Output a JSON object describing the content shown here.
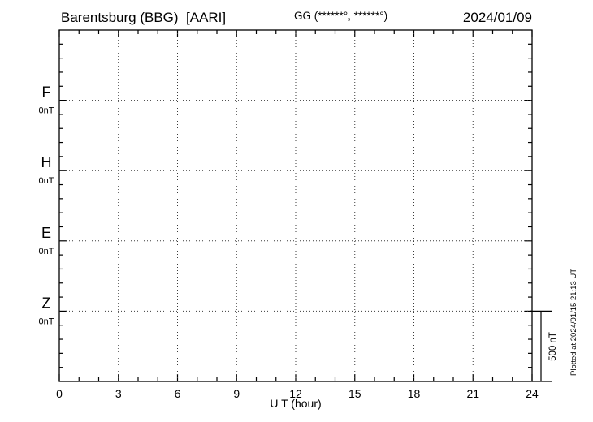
{
  "header": {
    "station_title": "Barentsburg (BBG)  [AARI]",
    "gg_coords": "GG (******°, ******°)",
    "date": "2024/01/09"
  },
  "chart_data": {
    "type": "line",
    "title": "Barentsburg (BBG) [AARI] magnetogram for 2024/01/09",
    "xlabel": "U T (hour)",
    "ylabel": "",
    "xlim": [
      0,
      24
    ],
    "x_ticks": [
      0,
      3,
      6,
      9,
      12,
      15,
      18,
      21,
      24
    ],
    "x_minor_step_hours": 1,
    "grid": "dotted vertical lines every 3 hours; dotted horizontal line at each channel baseline",
    "y_minor_divisions": 25,
    "nT_per_minor_division": 100,
    "channels": [
      {
        "name": "F",
        "baseline_label": "0nT",
        "baseline_value_nT": 0,
        "color": "#FFAE00",
        "values": []
      },
      {
        "name": "H",
        "baseline_label": "0nT",
        "baseline_value_nT": 0,
        "color": "#00DD00",
        "values": []
      },
      {
        "name": "E",
        "baseline_label": "0nT",
        "baseline_value_nT": 0,
        "color": "#2B2BE8",
        "values": []
      },
      {
        "name": "Z",
        "baseline_label": "0nT",
        "baseline_value_nT": 0,
        "color": "#EE0000",
        "values": []
      }
    ],
    "note": "No trace data plotted; all four channels shown only as flat dotted 0 nT baselines",
    "scale_bar": {
      "label": "500 nT",
      "span_nT": 500
    },
    "footnote": "Plotted at 2024/01/15 21:13 UT"
  }
}
